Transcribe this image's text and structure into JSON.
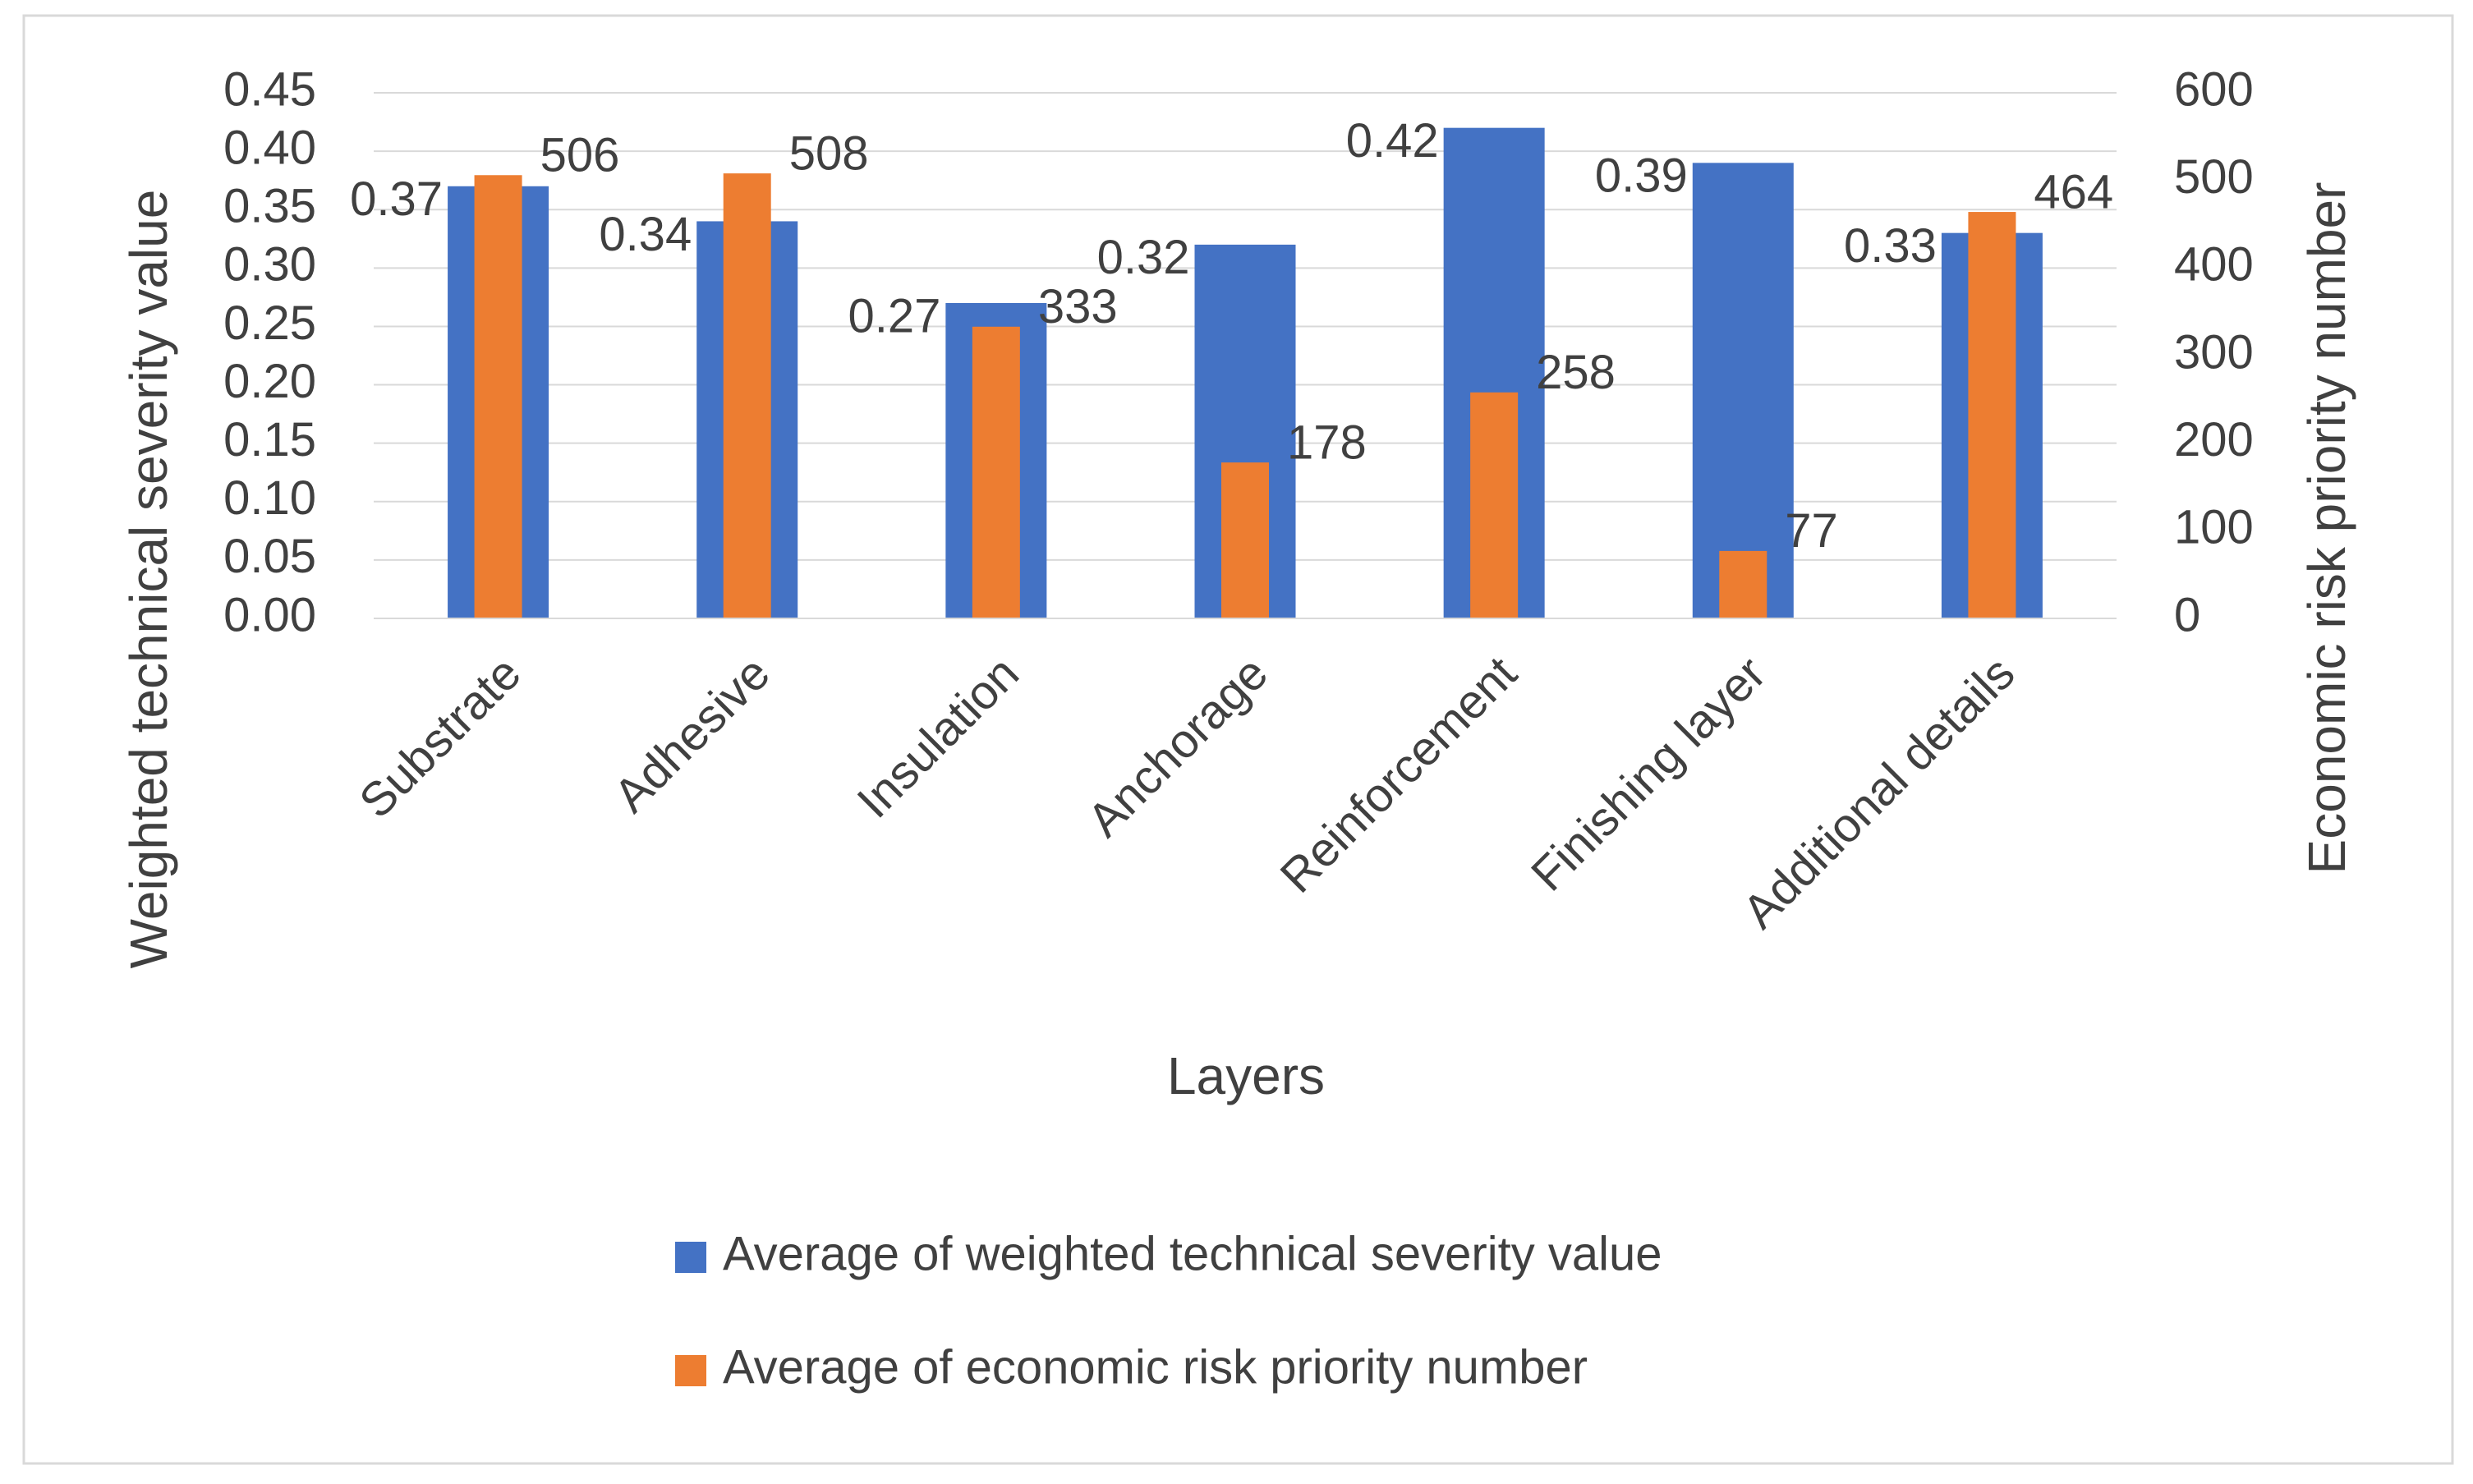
{
  "chart_data": {
    "type": "bar",
    "xlabel": "Layers",
    "ylabel": "Weighted technical severity value",
    "y2label": "Economic risk priority number",
    "categories": [
      "Substrate",
      "Adhesive",
      "Insulation",
      "Anchorage",
      "Reinforcement",
      "Finishing layer",
      "Additional details"
    ],
    "series": [
      {
        "name": "Average of weighted technical severity value",
        "color": "#4472c4",
        "values": [
          0.37,
          0.34,
          0.27,
          0.32,
          0.42,
          0.39,
          0.33
        ]
      },
      {
        "name": "Average of economic risk priority number",
        "color": "#ed7d31",
        "axis": "y2",
        "values": [
          506,
          508,
          333,
          178,
          258,
          77,
          464
        ]
      }
    ],
    "ylim": [
      0,
      0.45
    ],
    "yticks": [
      {
        "value": 0,
        "label": "0.00"
      },
      {
        "value": 0.05,
        "label": "0.05"
      },
      {
        "value": 0.1,
        "label": "0.10"
      },
      {
        "value": 0.15,
        "label": "0.15"
      },
      {
        "value": 0.2,
        "label": "0.20"
      },
      {
        "value": 0.25,
        "label": "0.25"
      },
      {
        "value": 0.3,
        "label": "0.30"
      },
      {
        "value": 0.35,
        "label": "0.35"
      },
      {
        "value": 0.4,
        "label": "0.40"
      },
      {
        "value": 0.45,
        "label": "0.45"
      }
    ],
    "y2lim": [
      0,
      600
    ],
    "y2ticks": [
      0,
      100,
      200,
      300,
      400,
      500,
      600
    ],
    "grid": true,
    "legend": "bottom"
  }
}
